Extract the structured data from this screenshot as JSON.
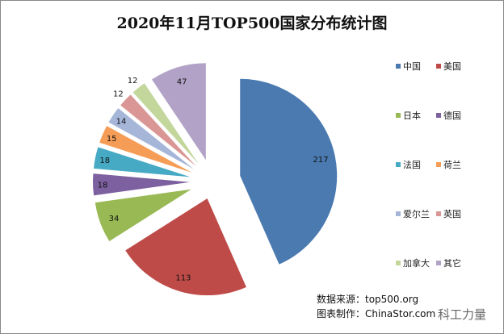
{
  "chart_data": {
    "type": "pie",
    "title": "2020年11月TOP500国家分布统计图",
    "categories": [
      "中国",
      "美国",
      "日本",
      "德国",
      "法国",
      "荷兰",
      "爱尔兰",
      "英国",
      "加拿大",
      "其它"
    ],
    "values": [
      217,
      113,
      34,
      18,
      18,
      15,
      14,
      12,
      12,
      47
    ],
    "colors": [
      "#4a7ab0",
      "#be4b48",
      "#98b954",
      "#7d60a0",
      "#46aac5",
      "#f59d56",
      "#a5b6d9",
      "#d99694",
      "#c3d69b",
      "#b2a2c7"
    ],
    "legend_placement": "right",
    "exploded": true
  },
  "credits": {
    "source": "数据来源：top500.org",
    "made_by": "图表制作：ChinaStor.com"
  },
  "watermark": "科工力量"
}
